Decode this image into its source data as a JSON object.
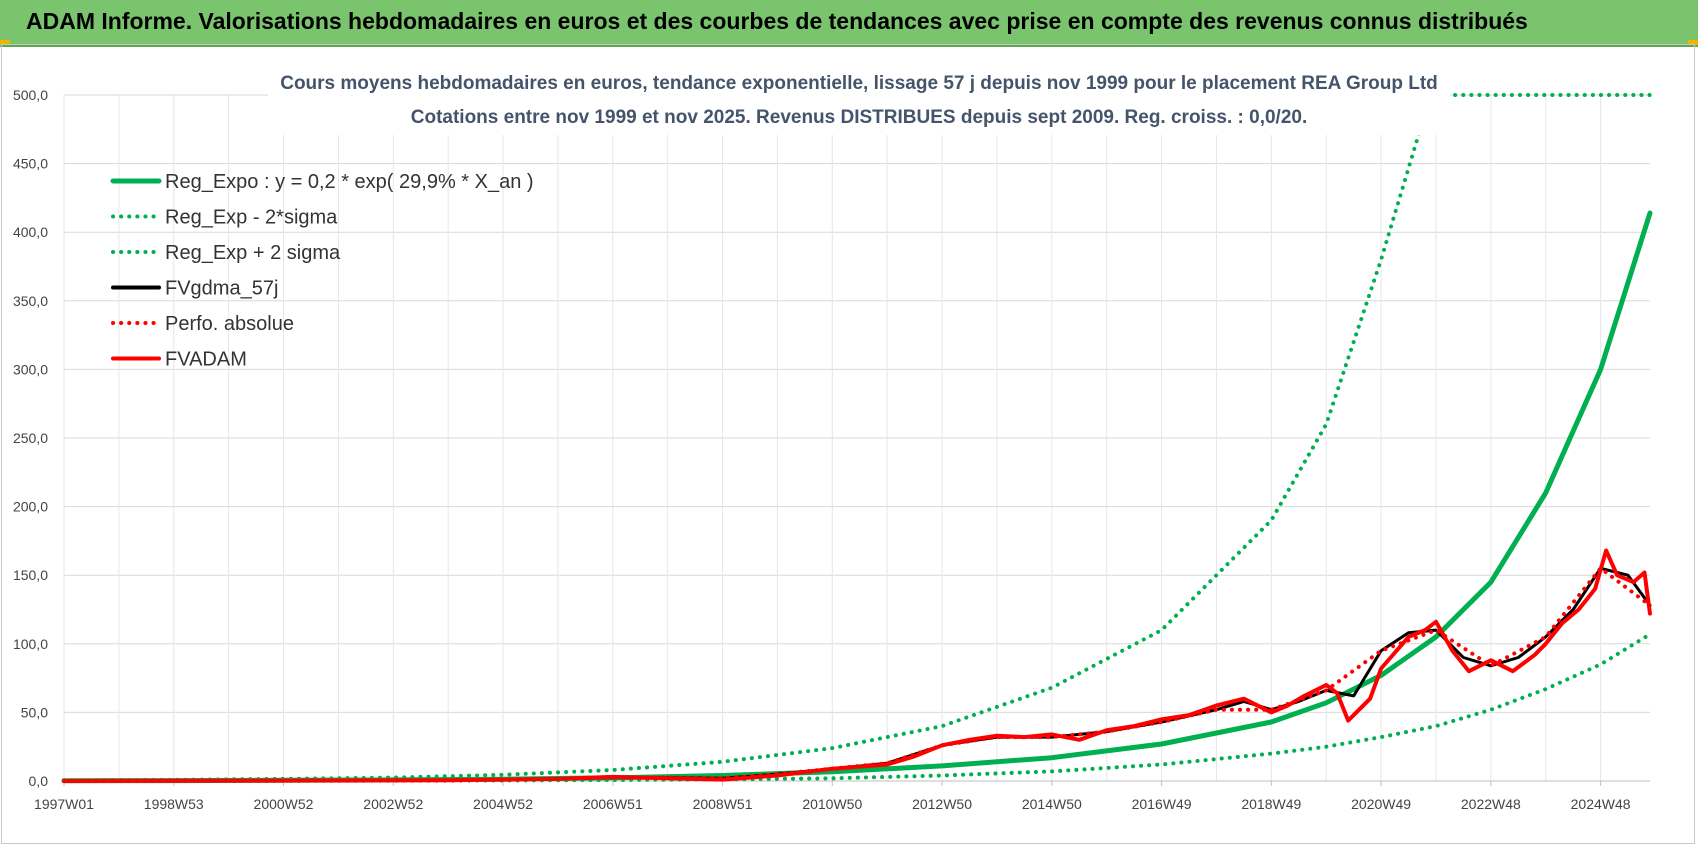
{
  "header": {
    "title": "ADAM Informe. Valorisations hebdomadaires en euros et des courbes de tendances avec prise en compte des revenus connus distribués",
    "background": "#7ac46e"
  },
  "chart_data": {
    "type": "line",
    "title_line1": "Cours moyens hebdomadaires en euros, tendance exponentielle, lissage 57 j depuis nov 1999  pour le placement REA Group Ltd",
    "title_line2": "Cotations entre nov 1999 et nov 2025. Revenus DISTRIBUES depuis sept 2009. Reg.  croiss. : 0,0/20.",
    "ylim": [
      0,
      500
    ],
    "y_ticks": [
      "0,0",
      "50,0",
      "100,0",
      "150,0",
      "200,0",
      "250,0",
      "300,0",
      "350,0",
      "400,0",
      "450,0",
      "500,0"
    ],
    "x_tick_labels": [
      "1997W01",
      "1998W53",
      "2000W52",
      "2002W52",
      "2004W52",
      "2006W51",
      "2008W51",
      "2010W50",
      "2012W50",
      "2014W50",
      "2016W49",
      "2018W49",
      "2020W49",
      "2022W48",
      "2024W48"
    ],
    "x_ticks_year": [
      1997.0,
      1999.0,
      2001.0,
      2003.0,
      2005.0,
      2007.0,
      2009.0,
      2011.0,
      2013.0,
      2015.0,
      2017.0,
      2019.0,
      2021.0,
      2023.0,
      2025.0
    ],
    "xlim": [
      1997.0,
      2025.9
    ],
    "grid": true,
    "legend_position": "top-left",
    "series": [
      {
        "name": "Reg_Expo : y = 0,2 * exp( 29,9% *  X_an )",
        "color": "#00b050",
        "style": "solid",
        "x": [
          1997,
          1999,
          2001,
          2003,
          2005,
          2007,
          2009,
          2011,
          2013,
          2015,
          2017,
          2019,
          2020,
          2021,
          2022,
          2023,
          2024,
          2025,
          2025.9
        ],
        "y": [
          0.2,
          0.3,
          0.5,
          0.8,
          1.3,
          2.3,
          4.0,
          6.8,
          11,
          17,
          27,
          43,
          57,
          77,
          105,
          145,
          210,
          300,
          414
        ]
      },
      {
        "name": "Reg_Exp - 2*sigma",
        "color": "#00b050",
        "style": "dotted",
        "x": [
          1997,
          1999,
          2001,
          2003,
          2005,
          2007,
          2009,
          2011,
          2013,
          2015,
          2017,
          2019,
          2020,
          2021,
          2022,
          2023,
          2024,
          2025,
          2025.9
        ],
        "y": [
          0.05,
          0.08,
          0.15,
          0.25,
          0.4,
          0.7,
          1.2,
          2.0,
          4,
          7,
          12,
          20,
          25,
          32,
          40,
          52,
          67,
          85,
          107
        ]
      },
      {
        "name": "Reg_Exp + 2 sigma",
        "color": "#00b050",
        "style": "dotted",
        "x": [
          1997,
          1999,
          2001,
          2003,
          2005,
          2007,
          2009,
          2011,
          2013,
          2015,
          2017,
          2019,
          2020,
          2021,
          2021.9,
          2025.9
        ],
        "y": [
          0.5,
          0.9,
          1.5,
          2.5,
          4.5,
          8,
          14,
          24,
          40,
          68,
          110,
          190,
          260,
          380,
          500,
          500
        ]
      },
      {
        "name": "FVgdma_57j",
        "color": "#000000",
        "style": "solid",
        "x": [
          1997,
          2004,
          2006,
          2007,
          2008,
          2009,
          2010,
          2011,
          2012,
          2013,
          2014,
          2015,
          2016,
          2017,
          2018,
          2018.5,
          2019,
          2019.5,
          2020,
          2020.5,
          2021,
          2021.5,
          2022,
          2022.5,
          2023,
          2023.5,
          2024,
          2024.5,
          2025,
          2025.5,
          2025.9
        ],
        "y": [
          0,
          0.5,
          1.5,
          2.5,
          2.5,
          2,
          5,
          9,
          13,
          26,
          32,
          32,
          36,
          43,
          52,
          58,
          52,
          58,
          66,
          62,
          95,
          108,
          110,
          90,
          84,
          90,
          105,
          125,
          155,
          150,
          128
        ]
      },
      {
        "name": "Perfo. absolue",
        "color": "#ff0000",
        "style": "dotted",
        "x": [
          1997,
          2004,
          2006,
          2007,
          2008,
          2009,
          2010,
          2011,
          2012,
          2013,
          2014,
          2015,
          2016,
          2017,
          2018,
          2019,
          2020,
          2021,
          2022,
          2023,
          2024,
          2025,
          2025.9
        ],
        "y": [
          0,
          0.5,
          1.5,
          2.5,
          2.5,
          2,
          5,
          9,
          13,
          26,
          32,
          32,
          36,
          43,
          52,
          52,
          66,
          95,
          110,
          84,
          105,
          155,
          128
        ]
      },
      {
        "name": "FVADAM",
        "color": "#ff0000",
        "style": "solid",
        "x": [
          1997,
          2004,
          2006,
          2007,
          2008,
          2009,
          2010,
          2011,
          2012,
          2012.5,
          2013,
          2013.5,
          2014,
          2014.5,
          2015,
          2015.5,
          2016,
          2016.5,
          2017,
          2017.5,
          2018,
          2018.5,
          2019,
          2019.3,
          2019.6,
          2020,
          2020.2,
          2020.4,
          2020.8,
          2021,
          2021.5,
          2021.8,
          2022,
          2022.3,
          2022.6,
          2023,
          2023.4,
          2023.8,
          2024,
          2024.3,
          2024.6,
          2024.9,
          2025.1,
          2025.3,
          2025.6,
          2025.8,
          2025.9
        ],
        "y": [
          0,
          0.5,
          1.5,
          3,
          2,
          1,
          4,
          9,
          12,
          18,
          26,
          30,
          33,
          32,
          34,
          30,
          37,
          40,
          45,
          48,
          55,
          60,
          50,
          55,
          62,
          70,
          64,
          44,
          60,
          82,
          105,
          110,
          116,
          95,
          80,
          88,
          80,
          92,
          100,
          115,
          125,
          140,
          168,
          150,
          145,
          152,
          122
        ]
      }
    ]
  }
}
